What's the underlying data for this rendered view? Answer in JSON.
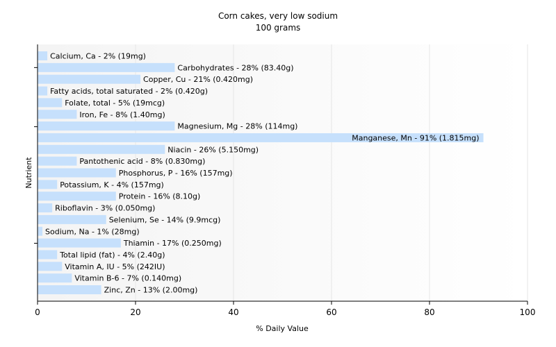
{
  "chart_data": {
    "type": "bar",
    "orientation": "horizontal",
    "title": "Corn cakes, very low sodium",
    "subtitle": "100 grams",
    "xlabel": "% Daily Value",
    "ylabel": "Nutrient",
    "xlim": [
      0,
      100
    ],
    "xticks": [
      0,
      20,
      40,
      60,
      80,
      100
    ],
    "grid": true,
    "bar_color": "#c6e0fc",
    "categories": [
      "Calcium, Ca",
      "Carbohydrates",
      "Copper, Cu",
      "Fatty acids, total saturated",
      "Folate, total",
      "Iron, Fe",
      "Magnesium, Mg",
      "Manganese, Mn",
      "Niacin",
      "Pantothenic acid",
      "Phosphorus, P",
      "Potassium, K",
      "Protein",
      "Riboflavin",
      "Selenium, Se",
      "Sodium, Na",
      "Thiamin",
      "Total lipid (fat)",
      "Vitamin A, IU",
      "Vitamin B-6",
      "Zinc, Zn"
    ],
    "values": [
      2,
      28,
      21,
      2,
      5,
      8,
      28,
      91,
      26,
      8,
      16,
      4,
      16,
      3,
      14,
      1,
      17,
      4,
      5,
      7,
      13
    ],
    "labels": [
      "Calcium, Ca - 2% (19mg)",
      "Carbohydrates - 28% (83.40g)",
      "Copper, Cu - 21% (0.420mg)",
      "Fatty acids, total saturated - 2% (0.420g)",
      "Folate, total - 5% (19mcg)",
      "Iron, Fe - 8% (1.40mg)",
      "Magnesium, Mg - 28% (114mg)",
      "Manganese, Mn - 91% (1.815mg)",
      "Niacin - 26% (5.150mg)",
      "Pantothenic acid - 8% (0.830mg)",
      "Phosphorus, P - 16% (157mg)",
      "Potassium, K - 4% (157mg)",
      "Protein - 16% (8.10g)",
      "Riboflavin - 3% (0.050mg)",
      "Selenium, Se - 14% (9.9mcg)",
      "Sodium, Na - 1% (28mg)",
      "Thiamin - 17% (0.250mg)",
      "Total lipid (fat) - 4% (2.40g)",
      "Vitamin A, IU - 5% (242IU)",
      "Vitamin B-6 - 7% (0.140mg)",
      "Zinc, Zn - 13% (2.00mg)"
    ]
  }
}
